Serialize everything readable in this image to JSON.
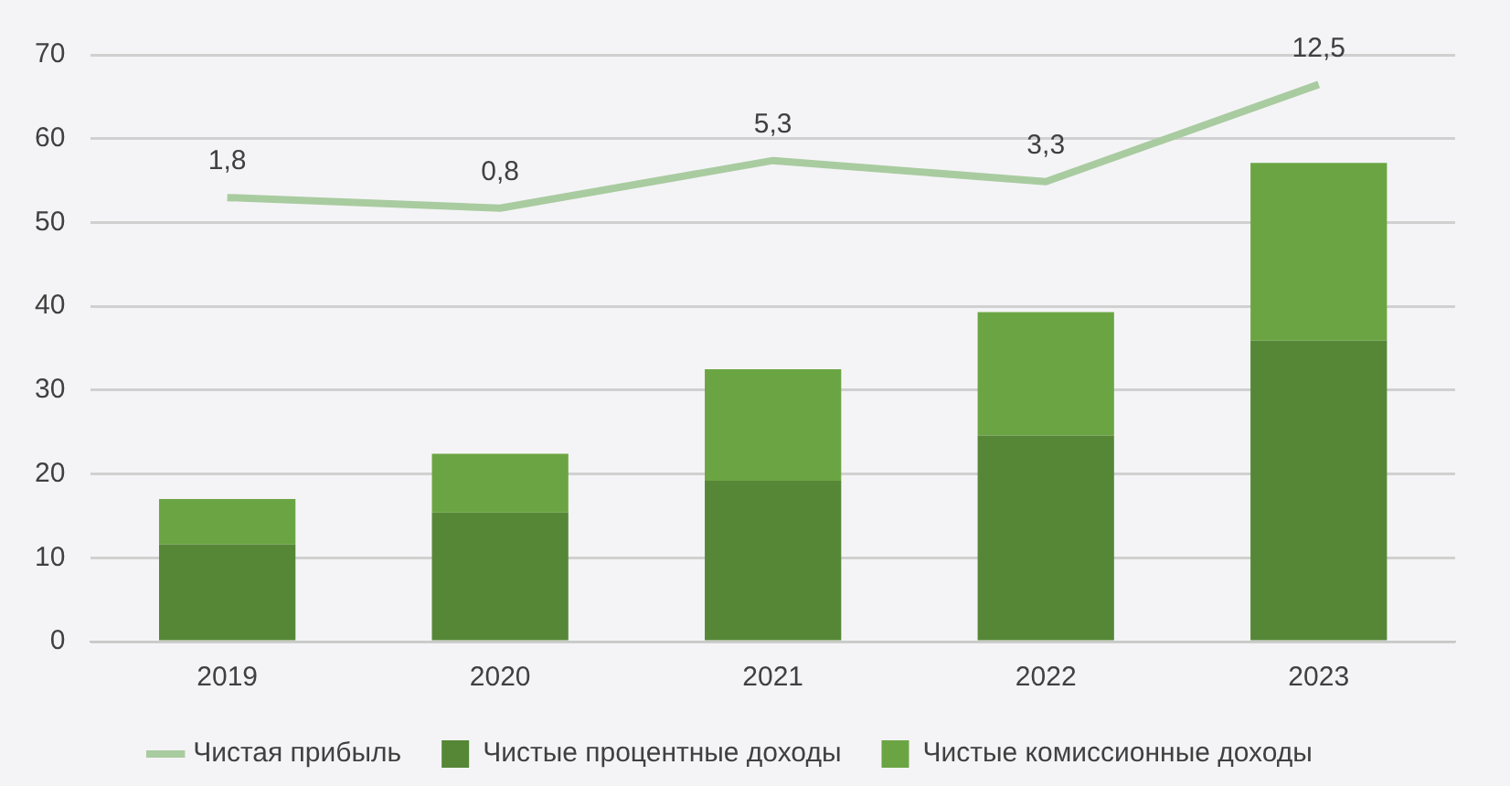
{
  "chart_data": {
    "type": "bar",
    "stacked": true,
    "categories": [
      "2019",
      "2020",
      "2021",
      "2022",
      "2023"
    ],
    "series": [
      {
        "name": "Чистые процентные доходы",
        "color": "#568737",
        "values": [
          11.6,
          15.4,
          19.2,
          24.6,
          35.9
        ]
      },
      {
        "name": "Чистые комиссионные доходы",
        "color": "#6ba543",
        "values": [
          5.4,
          7.0,
          13.3,
          14.7,
          21.2
        ]
      },
      {
        "name": "Чистая прибыль",
        "type": "line",
        "axis": "y2",
        "color": "#a9cba0",
        "values": [
          1.8,
          0.8,
          5.3,
          3.3,
          12.5
        ],
        "value_labels": [
          "1,8",
          "0,8",
          "5,3",
          "3,3",
          "12,5"
        ]
      }
    ],
    "ylim": [
      0,
      70
    ],
    "yticks": [
      0,
      10,
      20,
      30,
      40,
      50,
      60,
      70
    ],
    "y2lim": [
      -40.2,
      15.3
    ],
    "grid": "y",
    "legend": "bottom",
    "marker": "none",
    "tick_labels": "xy"
  }
}
